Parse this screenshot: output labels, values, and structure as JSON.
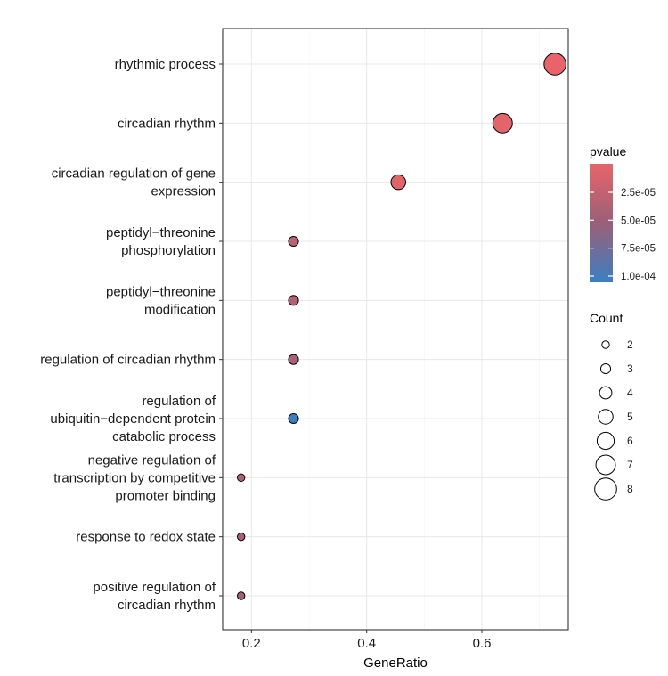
{
  "chart_data": {
    "type": "scatter",
    "xlabel": "GeneRatio",
    "ylabel": "",
    "xlim": [
      0.15,
      0.75
    ],
    "x_ticks": [
      0.2,
      0.4,
      0.6
    ],
    "x_tick_labels": [
      "0.2",
      "0.4",
      "0.6"
    ],
    "grid": true,
    "legend_position": "right",
    "color_legend": {
      "title": "pvalue",
      "low_color": "#e8646a",
      "high_color": "#3a7fc1",
      "range": [
        0,
        0.0001
      ],
      "ticks": [
        2.5e-05,
        5e-05,
        7.5e-05,
        0.0001
      ],
      "tick_labels": [
        "2.5e-05",
        "5.0e-05",
        "7.5e-05",
        "1.0e-04"
      ]
    },
    "size_legend": {
      "title": "Count",
      "values": [
        2,
        3,
        4,
        5,
        6,
        7,
        8
      ],
      "labels": [
        "2",
        "3",
        "4",
        "5",
        "6",
        "7",
        "8"
      ]
    },
    "terms": [
      {
        "label": [
          "rhythmic process"
        ],
        "gene_ratio": 0.727,
        "count": 8,
        "pvalue": 2e-07
      },
      {
        "label": [
          "circadian rhythm"
        ],
        "gene_ratio": 0.636,
        "count": 7,
        "pvalue": 3e-06
      },
      {
        "label": [
          "circadian regulation of gene",
          "expression"
        ],
        "gene_ratio": 0.455,
        "count": 5,
        "pvalue": 4e-06
      },
      {
        "label": [
          "peptidyl−threonine",
          "phosphorylation"
        ],
        "gene_ratio": 0.273,
        "count": 3,
        "pvalue": 3e-05
      },
      {
        "label": [
          "peptidyl−threonine",
          "modification"
        ],
        "gene_ratio": 0.273,
        "count": 3,
        "pvalue": 3.5e-05
      },
      {
        "label": [
          "regulation of circadian rhythm"
        ],
        "gene_ratio": 0.273,
        "count": 3,
        "pvalue": 4e-05
      },
      {
        "label": [
          "regulation of",
          "ubiquitin−dependent protein",
          "catabolic process"
        ],
        "gene_ratio": 0.273,
        "count": 3,
        "pvalue": 0.0001
      },
      {
        "label": [
          "negative regulation of",
          "transcription by competitive",
          "promoter binding"
        ],
        "gene_ratio": 0.182,
        "count": 2,
        "pvalue": 3.5e-05
      },
      {
        "label": [
          "response to redox state"
        ],
        "gene_ratio": 0.182,
        "count": 2,
        "pvalue": 4e-05
      },
      {
        "label": [
          "positive regulation of",
          "circadian rhythm"
        ],
        "gene_ratio": 0.182,
        "count": 2,
        "pvalue": 4.5e-05
      }
    ]
  }
}
